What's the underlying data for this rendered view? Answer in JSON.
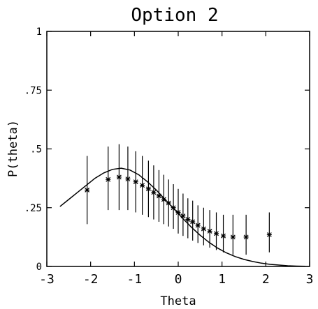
{
  "chart_data": {
    "type": "scatter",
    "title": "Option 2",
    "xlabel": "Theta",
    "ylabel": "P(theta)",
    "xlim": [
      -3,
      3
    ],
    "ylim": [
      0,
      1
    ],
    "x_ticks": [
      {
        "value": -3,
        "label": "-3"
      },
      {
        "value": -2,
        "label": "-2"
      },
      {
        "value": -1,
        "label": "-1"
      },
      {
        "value": 0,
        "label": "0"
      },
      {
        "value": 1,
        "label": "1"
      },
      {
        "value": 2,
        "label": "2"
      },
      {
        "value": 3,
        "label": "3"
      }
    ],
    "y_ticks": [
      {
        "value": 0,
        "label": "0"
      },
      {
        "value": 0.25,
        "label": ".25"
      },
      {
        "value": 0.5,
        "label": ".5"
      },
      {
        "value": 0.75,
        "label": ".75"
      },
      {
        "value": 1,
        "label": "1"
      }
    ],
    "grid": false,
    "points": [
      {
        "x": -2.08,
        "y": 0.325,
        "low": 0.18,
        "high": 0.47
      },
      {
        "x": -1.6,
        "y": 0.37,
        "low": 0.24,
        "high": 0.51
      },
      {
        "x": -1.35,
        "y": 0.38,
        "low": 0.24,
        "high": 0.52
      },
      {
        "x": -1.15,
        "y": 0.372,
        "low": 0.24,
        "high": 0.51
      },
      {
        "x": -0.97,
        "y": 0.36,
        "low": 0.23,
        "high": 0.49
      },
      {
        "x": -0.82,
        "y": 0.345,
        "low": 0.22,
        "high": 0.47
      },
      {
        "x": -0.68,
        "y": 0.33,
        "low": 0.21,
        "high": 0.45
      },
      {
        "x": -0.56,
        "y": 0.315,
        "low": 0.2,
        "high": 0.43
      },
      {
        "x": -0.44,
        "y": 0.3,
        "low": 0.19,
        "high": 0.41
      },
      {
        "x": -0.33,
        "y": 0.285,
        "low": 0.18,
        "high": 0.39
      },
      {
        "x": -0.22,
        "y": 0.27,
        "low": 0.17,
        "high": 0.37
      },
      {
        "x": -0.11,
        "y": 0.25,
        "low": 0.16,
        "high": 0.35
      },
      {
        "x": 0.0,
        "y": 0.23,
        "low": 0.14,
        "high": 0.33
      },
      {
        "x": 0.11,
        "y": 0.215,
        "low": 0.13,
        "high": 0.31
      },
      {
        "x": 0.22,
        "y": 0.2,
        "low": 0.12,
        "high": 0.29
      },
      {
        "x": 0.33,
        "y": 0.19,
        "low": 0.11,
        "high": 0.28
      },
      {
        "x": 0.45,
        "y": 0.175,
        "low": 0.1,
        "high": 0.26
      },
      {
        "x": 0.58,
        "y": 0.16,
        "low": 0.09,
        "high": 0.25
      },
      {
        "x": 0.72,
        "y": 0.15,
        "low": 0.08,
        "high": 0.24
      },
      {
        "x": 0.87,
        "y": 0.14,
        "low": 0.07,
        "high": 0.23
      },
      {
        "x": 1.03,
        "y": 0.13,
        "low": 0.06,
        "high": 0.22
      },
      {
        "x": 1.25,
        "y": 0.125,
        "low": 0.05,
        "high": 0.22
      },
      {
        "x": 1.55,
        "y": 0.125,
        "low": 0.05,
        "high": 0.22
      },
      {
        "x": 2.08,
        "y": 0.135,
        "low": 0.06,
        "high": 0.23
      }
    ],
    "curve": {
      "x": [
        -2.7,
        -2.5,
        -2.3,
        -2.1,
        -1.9,
        -1.7,
        -1.5,
        -1.3,
        -1.1,
        -0.9,
        -0.7,
        -0.5,
        -0.3,
        -0.1,
        0.1,
        0.3,
        0.5,
        0.7,
        0.9,
        1.1,
        1.3,
        1.5,
        1.7,
        1.9,
        2.1,
        2.3,
        2.5,
        2.7,
        2.9
      ],
      "y": [
        0.255,
        0.285,
        0.315,
        0.345,
        0.375,
        0.398,
        0.413,
        0.418,
        0.41,
        0.39,
        0.36,
        0.325,
        0.285,
        0.245,
        0.205,
        0.167,
        0.133,
        0.103,
        0.078,
        0.058,
        0.042,
        0.03,
        0.021,
        0.014,
        0.009,
        0.006,
        0.003,
        0.0015,
        0.0005
      ]
    }
  }
}
